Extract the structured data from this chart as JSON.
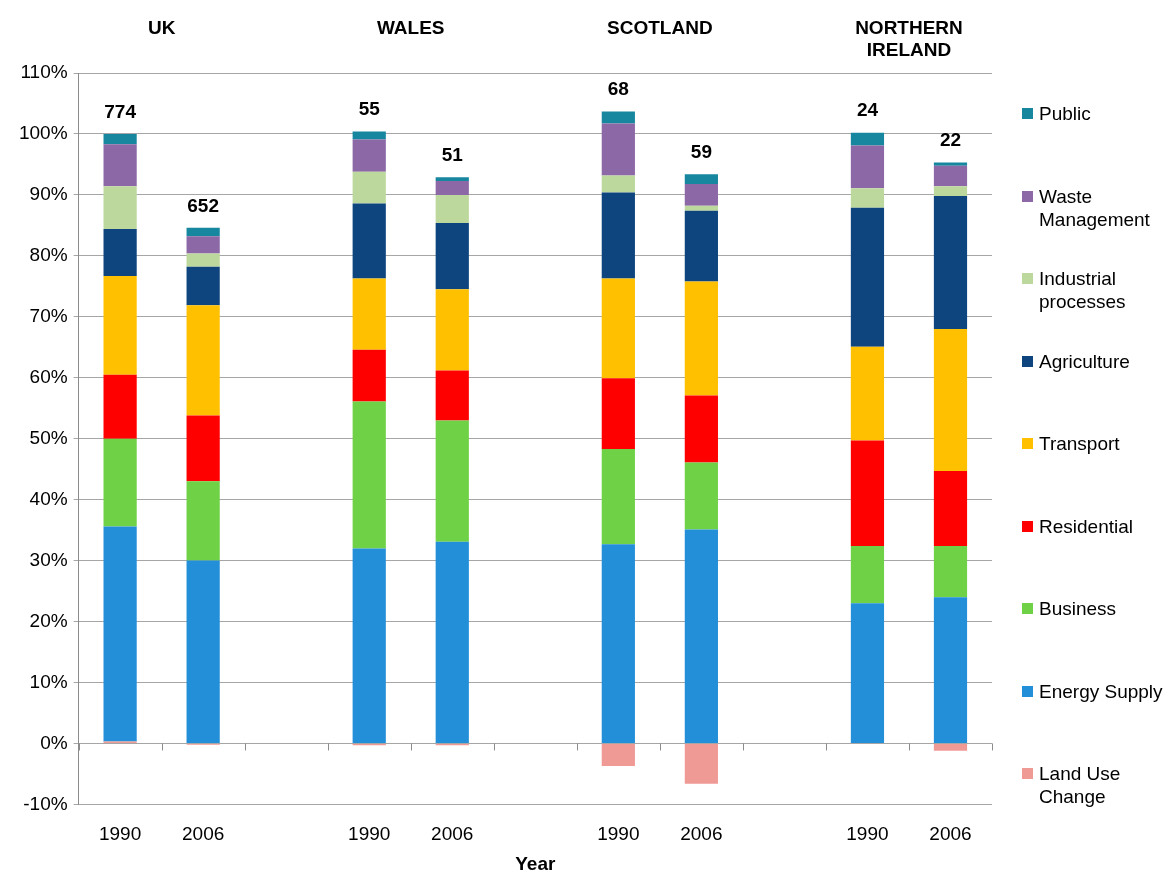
{
  "chart_data": {
    "type": "bar",
    "stacked": true,
    "categories": [
      "1990",
      "2006",
      null,
      "1990",
      "2006",
      null,
      "1990",
      "2006",
      null,
      "1990",
      "2006"
    ],
    "xlabel": "Year",
    "annotations": [
      "UK",
      "WALES",
      "SCOTLAND",
      "NORTHERN IRELAND",
      "774",
      "652",
      "55",
      "51",
      "68",
      "59",
      "24",
      "22"
    ],
    "series": [
      {
        "name": "Land Use Change",
        "color": "#f09a96",
        "values": [
          0.3,
          -0.2,
          null,
          -0.3,
          -0.3,
          null,
          -3.7,
          -6.6,
          null,
          0,
          -1.2
        ]
      },
      {
        "name": "Energy Supply",
        "color": "#228fd8",
        "values": [
          35.3,
          30.0,
          null,
          32.0,
          33.1,
          null,
          32.7,
          35.1,
          null,
          23.0,
          24.0
        ]
      },
      {
        "name": "Business",
        "color": "#6fd246",
        "values": [
          14.4,
          13.0,
          null,
          24.1,
          19.9,
          null,
          15.6,
          11.0,
          null,
          9.4,
          8.4
        ]
      },
      {
        "name": "Residential",
        "color": "#ff0000",
        "values": [
          10.5,
          10.8,
          null,
          8.5,
          8.2,
          null,
          11.6,
          11.0,
          null,
          17.3,
          12.3
        ]
      },
      {
        "name": "Transport",
        "color": "#ffc000",
        "values": [
          16.2,
          18.1,
          null,
          11.7,
          13.3,
          null,
          16.4,
          18.7,
          null,
          15.4,
          23.3
        ]
      },
      {
        "name": "Agriculture",
        "color": "#0e457e",
        "values": [
          7.7,
          6.3,
          null,
          12.3,
          10.9,
          null,
          14.1,
          11.6,
          null,
          22.8,
          21.8
        ]
      },
      {
        "name": "Industrial processes",
        "color": "#bcd89c",
        "values": [
          7.0,
          2.2,
          null,
          5.2,
          4.6,
          null,
          2.8,
          0.8,
          null,
          3.2,
          1.6
        ]
      },
      {
        "name": "Waste Management",
        "color": "#8c68a6",
        "values": [
          6.9,
          2.8,
          null,
          5.3,
          2.3,
          null,
          8.5,
          3.6,
          null,
          7.0,
          3.4
        ]
      },
      {
        "name": "Public",
        "color": "#17879f",
        "values": [
          1.7,
          1.4,
          null,
          1.3,
          0.6,
          null,
          2.0,
          1.6,
          null,
          2.1,
          0.5
        ]
      }
    ],
    "ylim": [
      -10,
      110
    ],
    "yticks": [
      {
        "value": -10,
        "label": "-10%"
      },
      {
        "value": 0,
        "label": "0%"
      },
      {
        "value": 10,
        "label": "10%"
      },
      {
        "value": 20,
        "label": "20%"
      },
      {
        "value": 30,
        "label": "30%"
      },
      {
        "value": 40,
        "label": "40%"
      },
      {
        "value": 50,
        "label": "50%"
      },
      {
        "value": 60,
        "label": "60%"
      },
      {
        "value": 70,
        "label": "70%"
      },
      {
        "value": 80,
        "label": "80%"
      },
      {
        "value": 90,
        "label": "90%"
      },
      {
        "value": 100,
        "label": "100%"
      },
      {
        "value": 110,
        "label": "110%"
      }
    ],
    "grid": "y",
    "legend": "right"
  }
}
